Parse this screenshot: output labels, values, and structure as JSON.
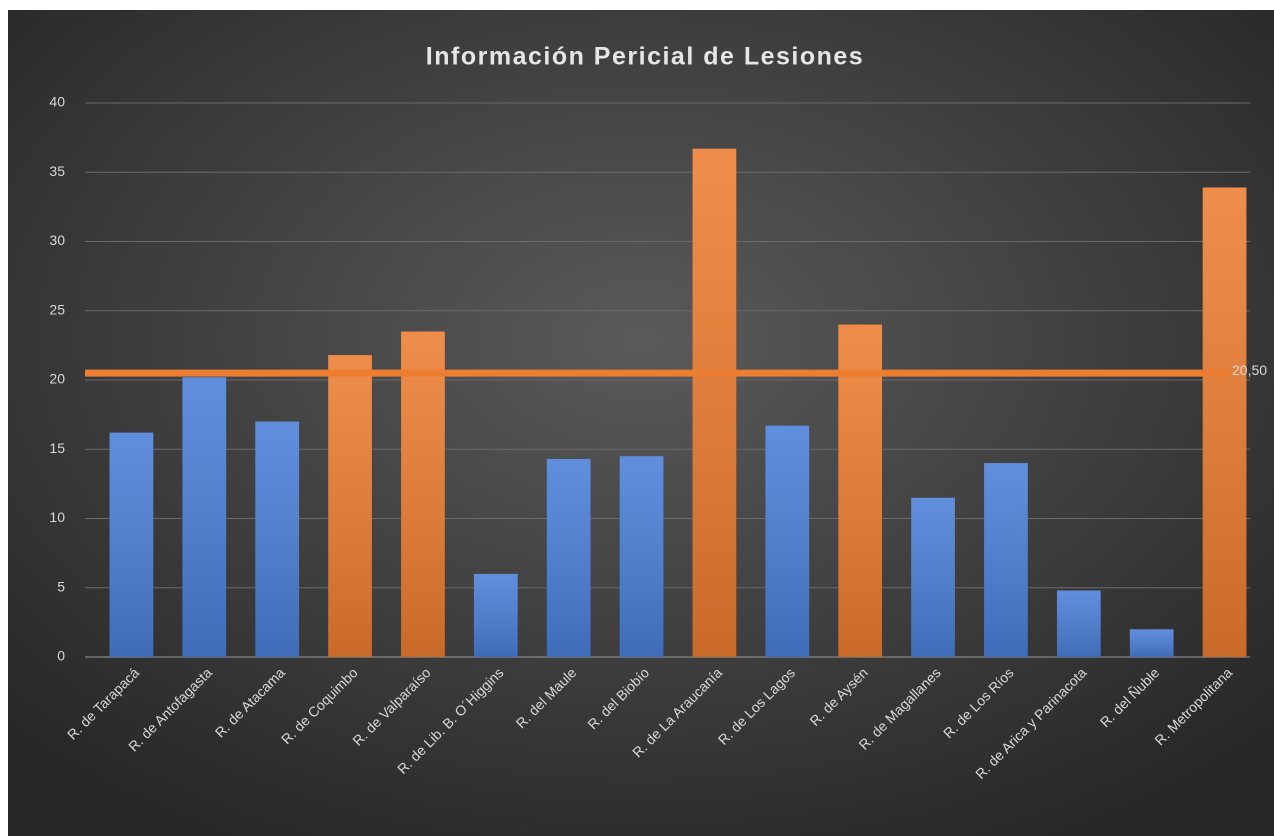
{
  "chart_data": {
    "type": "bar",
    "title": "Información  Pericial  de Lesiones",
    "categories": [
      "R. de Tarapacá",
      "R. de Antofagasta",
      "R. de Atacama",
      "R. de Coquimbo",
      "R. de Valparaíso",
      "R. de Lib. B. O´Higgins",
      "R. del Maule",
      "R. del Biobío",
      "R. de La Araucanía",
      "R. de Los Lagos",
      "R. de Aysén",
      "R. de Magallanes",
      "R. de Los Ríos",
      "R. de Arica y Parinacota",
      "R. del Ñuble",
      "R. Metropolitana"
    ],
    "values": [
      16.2,
      20.2,
      17,
      21.8,
      23.5,
      6,
      14.3,
      14.5,
      36.7,
      16.7,
      24,
      11.5,
      14,
      4.8,
      2,
      33.9
    ],
    "colors": [
      "#4a7fd8",
      "#4a7fd8",
      "#4a7fd8",
      "#ed7d31",
      "#ed7d31",
      "#4a7fd8",
      "#4a7fd8",
      "#4a7fd8",
      "#ed7d31",
      "#4a7fd8",
      "#ed7d31",
      "#4a7fd8",
      "#4a7fd8",
      "#4a7fd8",
      "#4a7fd8",
      "#ed7d31"
    ],
    "reference_line": {
      "value": 20.5,
      "label": "20,50",
      "color": "#ed7d31"
    },
    "ylim": [
      0,
      40
    ],
    "yticks": [
      0,
      5,
      10,
      15,
      20,
      25,
      30,
      35,
      40
    ],
    "grid": true
  }
}
